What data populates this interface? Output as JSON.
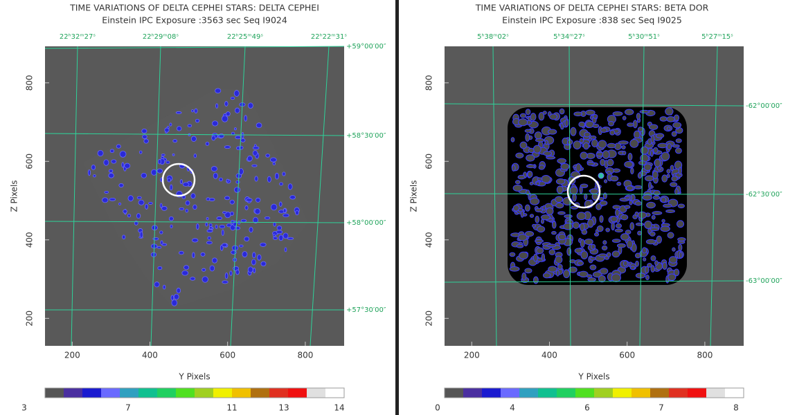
{
  "panels": [
    {
      "title": "TIME VARIATIONS OF DELTA CEPHEI STARS: DELTA CEPHEI",
      "subtitle": "Einstein IPC Exposure :3563 sec  Seq I9024",
      "x_label": "Y Pixels",
      "y_label": "Z Pixels",
      "xlim": [
        130,
        900
      ],
      "ylim": [
        130,
        893
      ],
      "xticks": [
        200,
        400,
        600,
        800
      ],
      "yticks": [
        200,
        400,
        600,
        800
      ],
      "ra_labels": [
        "22ʰ32ᵐ27ˢ",
        "22ʰ29ᵐ08ˢ",
        "22ʰ25ᵐ49ˢ",
        "22ʰ22ᵐ31ˢ"
      ],
      "dec_labels": [
        "+59°00′00″",
        "+58°30′00″",
        "+58°00′00″",
        "+57°30′00″"
      ],
      "colorbar_labels": [
        3,
        7,
        11,
        13,
        14
      ]
    },
    {
      "title": "TIME VARIATIONS OF DELTA CEPHEI STARS: BETA DOR",
      "subtitle": "Einstein IPC Exposure :838 sec  Seq I9025",
      "x_label": "Y Pixels",
      "y_label": "Z Pixels",
      "xlim": [
        130,
        900
      ],
      "ylim": [
        130,
        893
      ],
      "xticks": [
        200,
        400,
        600,
        800
      ],
      "yticks": [
        200,
        400,
        600,
        800
      ],
      "ra_labels": [
        "5ʰ38ᵐ02ˢ",
        "5ʰ34ᵐ27ˢ",
        "5ʰ30ᵐ51ˢ",
        "5ʰ27ᵐ15ˢ"
      ],
      "dec_labels": [
        "-62°00′00″",
        "-62°30′00″",
        "-63°00′00″"
      ],
      "colorbar_labels": [
        0,
        4,
        6,
        7,
        8
      ]
    }
  ],
  "colorbar_colors": [
    "#555555",
    "#4a2fa0",
    "#1a1ad0",
    "#6a6aff",
    "#2fa0c0",
    "#10c090",
    "#20d060",
    "#50e020",
    "#a0d020",
    "#f0f000",
    "#f0c000",
    "#b07010",
    "#e03020",
    "#f01010",
    "#e0e0e0",
    "#ffffff"
  ]
}
